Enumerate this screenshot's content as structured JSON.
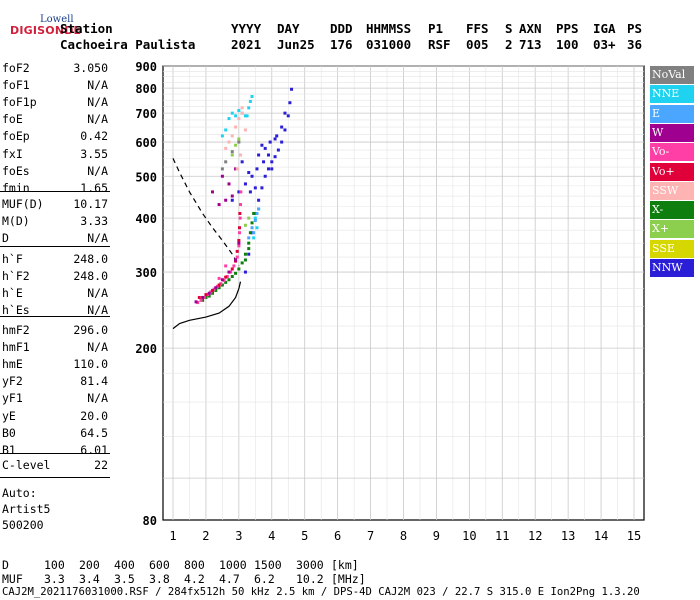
{
  "logo": {
    "top": "Lowell",
    "main": "DIGISONDE"
  },
  "header": {
    "station_label": "Station",
    "station_name": "Cachoeira Paulista",
    "year_label": "YYYY",
    "year": "2021",
    "day_label": "DAY",
    "day": "Jun25",
    "ddd_label": "DDD",
    "ddd": "176",
    "time_label": "HHMMSS",
    "time": "031000",
    "p1_label": "P1",
    "p1": "RSF",
    "ffs_label": "FFS",
    "ffs": "005",
    "s_label": "S",
    "s": "2",
    "axn_label": "AXN",
    "axn": "713",
    "pps_label": "PPS",
    "pps": "100",
    "iga_label": "IGA",
    "iga": "03+",
    "ps_label": "PS",
    "ps": "36"
  },
  "params": {
    "group1": [
      {
        "label": "foF2",
        "value": "3.050"
      },
      {
        "label": "foF1",
        "value": "N/A"
      },
      {
        "label": "foF1p",
        "value": "N/A"
      },
      {
        "label": "foE",
        "value": "N/A"
      },
      {
        "label": "foEp",
        "value": "0.42"
      },
      {
        "label": "fxI",
        "value": "3.55"
      },
      {
        "label": "foEs",
        "value": "N/A"
      },
      {
        "label": "fmin",
        "value": "1.65"
      }
    ],
    "group2": [
      {
        "label": "MUF(D)",
        "value": "10.17"
      },
      {
        "label": "M(D)",
        "value": "3.33"
      },
      {
        "label": "D",
        "value": "N/A"
      }
    ],
    "group3": [
      {
        "label": "h`F",
        "value": "248.0"
      },
      {
        "label": "h`F2",
        "value": "248.0"
      },
      {
        "label": "h`E",
        "value": "N/A"
      },
      {
        "label": "h`Es",
        "value": "N/A"
      }
    ],
    "group4": [
      {
        "label": "hmF2",
        "value": "296.0"
      },
      {
        "label": "hmF1",
        "value": "N/A"
      },
      {
        "label": "hmE",
        "value": "110.0"
      },
      {
        "label": "yF2",
        "value": "81.4"
      },
      {
        "label": "yF1",
        "value": "N/A"
      },
      {
        "label": "yE",
        "value": "20.0"
      },
      {
        "label": "B0",
        "value": "64.5"
      },
      {
        "label": "B1",
        "value": "6.01"
      }
    ],
    "group5": [
      {
        "label": "C-level",
        "value": "22"
      }
    ],
    "auto": [
      "Auto:",
      "Artist5",
      "500200"
    ]
  },
  "legend": [
    {
      "label": "NoVal",
      "color": "#808080"
    },
    {
      "label": "NNE",
      "color": "#1fd3f0"
    },
    {
      "label": "E",
      "color": "#4aa6ff"
    },
    {
      "label": "W",
      "color": "#a0008f"
    },
    {
      "label": "Vo-",
      "color": "#ff3fa6"
    },
    {
      "label": "Vo+",
      "color": "#e0003a"
    },
    {
      "label": "SSW",
      "color": "#ffb4b4"
    },
    {
      "label": "X-",
      "color": "#0e7f0e"
    },
    {
      "label": "X+",
      "color": "#8ccf4f"
    },
    {
      "label": "SSE",
      "color": "#d7d700"
    },
    {
      "label": "NNW",
      "color": "#2a1fd6"
    }
  ],
  "footer": {
    "d_label": "D",
    "d_values": [
      "100",
      "200",
      "400",
      "600",
      "800",
      "1000",
      "1500",
      "3000"
    ],
    "d_unit": "[km]",
    "muf_label": "MUF",
    "muf_values": [
      "3.3",
      "3.4",
      "3.5",
      "3.8",
      "4.2",
      "4.7",
      "6.2",
      "10.2"
    ],
    "muf_unit": "[MHz]",
    "file_line": "CAJ2M_2021176031000.RSF / 284fx512h 50 kHz 2.5 km / DPS-4D CAJ2M 023 / 22.7 S 315.0 E Ion2Png 1.3.20"
  },
  "chart_data": {
    "type": "scatter",
    "title": "",
    "xlabel": "",
    "ylabel": "",
    "xlim": [
      1,
      15
    ],
    "ylim": [
      80,
      900
    ],
    "x_ticks": [
      1,
      2,
      3,
      4,
      5,
      6,
      7,
      8,
      9,
      10,
      11,
      12,
      13,
      14,
      15
    ],
    "y_ticks": [
      80,
      200,
      300,
      400,
      500,
      600,
      700,
      800,
      900
    ],
    "y_scale": "log",
    "grid": true,
    "series": [
      {
        "name": "NNW",
        "color": "#2a1fd6",
        "points": [
          [
            3.2,
            300
          ],
          [
            3.3,
            330
          ],
          [
            3.4,
            370
          ],
          [
            3.5,
            410
          ],
          [
            3.6,
            440
          ],
          [
            3.7,
            470
          ],
          [
            3.8,
            500
          ],
          [
            3.9,
            520
          ],
          [
            4.0,
            540
          ],
          [
            4.1,
            555
          ],
          [
            4.2,
            575
          ],
          [
            4.3,
            600
          ],
          [
            4.4,
            640
          ],
          [
            4.5,
            690
          ],
          [
            4.55,
            740
          ],
          [
            4.6,
            795
          ],
          [
            3.0,
            460
          ],
          [
            3.2,
            480
          ],
          [
            3.4,
            500
          ],
          [
            3.6,
            560
          ],
          [
            3.8,
            580
          ],
          [
            4.0,
            520
          ],
          [
            3.3,
            510
          ],
          [
            3.5,
            470
          ],
          [
            2.8,
            440
          ],
          [
            3.1,
            540
          ],
          [
            3.7,
            590
          ],
          [
            3.9,
            560
          ],
          [
            4.1,
            610
          ],
          [
            4.3,
            650
          ],
          [
            4.4,
            700
          ],
          [
            3.35,
            460
          ],
          [
            3.55,
            520
          ],
          [
            3.75,
            540
          ],
          [
            3.95,
            600
          ],
          [
            4.15,
            620
          ]
        ]
      },
      {
        "name": "X-",
        "color": "#0e7f0e",
        "points": [
          [
            1.9,
            258
          ],
          [
            2.0,
            262
          ],
          [
            2.1,
            264
          ],
          [
            2.2,
            268
          ],
          [
            2.3,
            272
          ],
          [
            2.4,
            276
          ],
          [
            2.5,
            280
          ],
          [
            2.6,
            284
          ],
          [
            2.7,
            288
          ],
          [
            2.8,
            293
          ],
          [
            2.9,
            298
          ],
          [
            3.0,
            305
          ],
          [
            3.1,
            315
          ],
          [
            3.2,
            330
          ],
          [
            3.3,
            350
          ],
          [
            3.35,
            370
          ],
          [
            3.4,
            390
          ],
          [
            3.45,
            410
          ],
          [
            3.3,
            340
          ],
          [
            3.2,
            320
          ]
        ]
      },
      {
        "name": "Vo-",
        "color": "#ff3fa6",
        "points": [
          [
            1.75,
            255
          ],
          [
            1.85,
            258
          ],
          [
            1.95,
            262
          ],
          [
            2.05,
            266
          ],
          [
            2.15,
            270
          ],
          [
            2.25,
            274
          ],
          [
            2.35,
            278
          ],
          [
            2.45,
            282
          ],
          [
            2.55,
            287
          ],
          [
            2.65,
            293
          ],
          [
            2.75,
            300
          ],
          [
            2.85,
            310
          ],
          [
            2.95,
            325
          ],
          [
            3.0,
            345
          ],
          [
            3.02,
            370
          ],
          [
            3.04,
            400
          ],
          [
            3.05,
            430
          ],
          [
            3.06,
            460
          ],
          [
            2.6,
            310
          ],
          [
            2.4,
            290
          ]
        ]
      },
      {
        "name": "Vo+",
        "color": "#e0003a",
        "points": [
          [
            1.8,
            262
          ],
          [
            2.0,
            266
          ],
          [
            2.2,
            272
          ],
          [
            2.4,
            280
          ],
          [
            2.6,
            292
          ],
          [
            2.8,
            305
          ],
          [
            2.9,
            318
          ],
          [
            2.95,
            335
          ],
          [
            3.0,
            355
          ],
          [
            3.02,
            380
          ],
          [
            3.03,
            410
          ]
        ]
      },
      {
        "name": "W",
        "color": "#a0008f",
        "points": [
          [
            1.7,
            256
          ],
          [
            1.9,
            262
          ],
          [
            2.1,
            268
          ],
          [
            2.3,
            276
          ],
          [
            2.5,
            288
          ],
          [
            2.7,
            300
          ],
          [
            2.9,
            320
          ],
          [
            3.0,
            350
          ],
          [
            2.4,
            430
          ],
          [
            2.6,
            440
          ],
          [
            2.2,
            460
          ],
          [
            2.8,
            450
          ],
          [
            2.5,
            500
          ],
          [
            2.9,
            520
          ],
          [
            2.7,
            480
          ]
        ]
      },
      {
        "name": "NNE",
        "color": "#1fd3f0",
        "points": [
          [
            2.7,
            680
          ],
          [
            2.8,
            700
          ],
          [
            2.9,
            690
          ],
          [
            3.0,
            710
          ],
          [
            3.1,
            700
          ],
          [
            3.2,
            690
          ],
          [
            3.3,
            720
          ],
          [
            3.35,
            745
          ],
          [
            3.4,
            765
          ],
          [
            3.5,
            400
          ],
          [
            3.6,
            420
          ],
          [
            3.55,
            380
          ],
          [
            3.45,
            360
          ],
          [
            2.6,
            640
          ],
          [
            2.5,
            620
          ],
          [
            3.25,
            690
          ]
        ]
      },
      {
        "name": "E",
        "color": "#4aa6ff",
        "points": [
          [
            3.3,
            360
          ],
          [
            3.4,
            380
          ],
          [
            3.5,
            395
          ],
          [
            3.55,
            410
          ],
          [
            3.6,
            420
          ],
          [
            3.45,
            370
          ]
        ]
      },
      {
        "name": "SSW",
        "color": "#ffb4b4",
        "points": [
          [
            2.6,
            580
          ],
          [
            2.8,
            620
          ],
          [
            2.9,
            650
          ],
          [
            3.0,
            680
          ],
          [
            3.1,
            700
          ],
          [
            3.2,
            640
          ],
          [
            2.7,
            600
          ],
          [
            3.05,
            560
          ],
          [
            2.95,
            520
          ],
          [
            3.1,
            720
          ]
        ]
      },
      {
        "name": "X+",
        "color": "#8ccf4f",
        "points": [
          [
            2.9,
            590
          ],
          [
            3.0,
            610
          ],
          [
            2.8,
            560
          ],
          [
            3.3,
            400
          ],
          [
            3.2,
            385
          ]
        ]
      },
      {
        "name": "NoVal",
        "color": "#808080",
        "points": [
          [
            2.6,
            540
          ],
          [
            2.8,
            570
          ],
          [
            3.0,
            600
          ],
          [
            2.5,
            520
          ]
        ]
      }
    ],
    "lines": [
      {
        "name": "profile",
        "style": "solid",
        "points": [
          [
            1.0,
            222
          ],
          [
            1.2,
            228
          ],
          [
            1.5,
            232
          ],
          [
            2.0,
            236
          ],
          [
            2.4,
            241
          ],
          [
            2.7,
            250
          ],
          [
            2.9,
            262
          ],
          [
            3.0,
            275
          ],
          [
            3.05,
            285
          ]
        ]
      },
      {
        "name": "echo trace",
        "style": "dashed",
        "points": [
          [
            1.0,
            550
          ],
          [
            1.2,
            510
          ],
          [
            1.5,
            460
          ],
          [
            1.9,
            410
          ],
          [
            2.2,
            380
          ],
          [
            2.5,
            355
          ],
          [
            2.8,
            330
          ],
          [
            3.0,
            310
          ]
        ]
      }
    ]
  }
}
